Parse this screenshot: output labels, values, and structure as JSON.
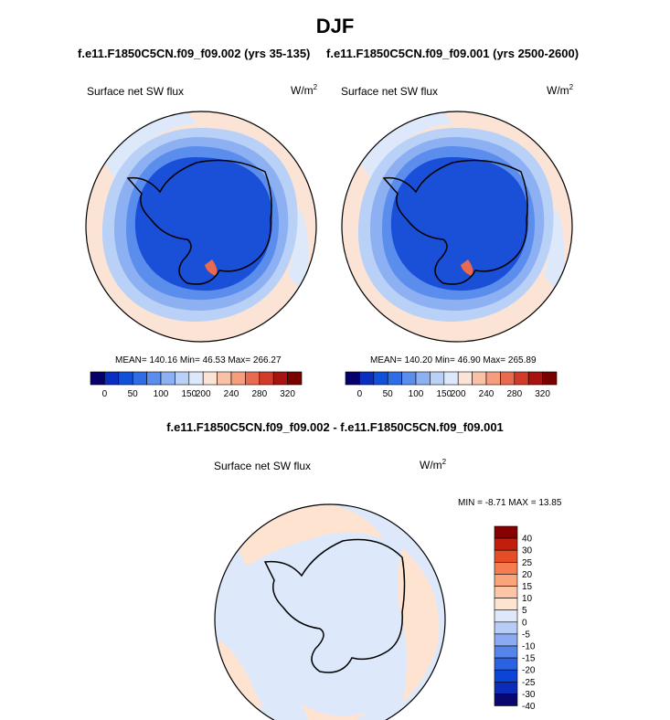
{
  "page": {
    "title": "DJF",
    "left_case": "f.e11.F1850C5CN.f09_f09.002 (yrs 35-135)",
    "right_case": "f.e11.F1850C5CN.f09_f09.001 (yrs 2500-2600)",
    "diff_title": "f.e11.F1850C5CN.f09_f09.002 - f.e11.F1850C5CN.f09_f09.001"
  },
  "colors": {
    "abs_levels": [
      "#08006a",
      "#0a2fc0",
      "#1150d8",
      "#2e6de6",
      "#5b8ded",
      "#8cb0f2",
      "#b9d0f7",
      "#dde9fb",
      "#fbe4d6",
      "#f9c2a6",
      "#f59d7d",
      "#ea6a4f",
      "#d23a2a",
      "#a8120f",
      "#7a0000"
    ],
    "diff_levels": [
      "#0a0870",
      "#0b2cb8",
      "#0c45d6",
      "#2a62e2",
      "#5685ea",
      "#8aaaf1",
      "#b7cdf6",
      "#dde9fb",
      "#fde3d0",
      "#fcc5a6",
      "#f9a47a",
      "#f47c4e",
      "#e44d25",
      "#bf1f0c",
      "#860000"
    ],
    "land_level": "#1a4fd8",
    "coastline": "#000000"
  },
  "chart_data": [
    {
      "type": "heatmap",
      "map": "polar stereographic, south pole",
      "title": "f.e11.F1850C5CN.f09_f09.002 (yrs 35-135)",
      "variable": "Surface net SW flux",
      "units": "W/m",
      "units_sup": "2",
      "stats_text": "MEAN= 140.16  Min=  46.53  Max= 266.27",
      "mean": 140.16,
      "min": 46.53,
      "max": 266.27,
      "colorbar_ticks": [
        "0",
        "50",
        "100",
        "150",
        "200",
        "240",
        "280",
        "320"
      ],
      "colorbar_orientation": "horizontal"
    },
    {
      "type": "heatmap",
      "map": "polar stereographic, south pole",
      "title": "f.e11.F1850C5CN.f09_f09.001 (yrs 2500-2600)",
      "variable": "Surface net SW flux",
      "units": "W/m",
      "units_sup": "2",
      "stats_text": "MEAN= 140.20  Min=  46.90  Max= 265.89",
      "mean": 140.2,
      "min": 46.9,
      "max": 265.89,
      "colorbar_ticks": [
        "0",
        "50",
        "100",
        "150",
        "200",
        "240",
        "280",
        "320"
      ],
      "colorbar_orientation": "horizontal"
    },
    {
      "type": "heatmap",
      "map": "polar stereographic, south pole",
      "title": "f.e11.F1850C5CN.f09_f09.002 - f.e11.F1850C5CN.f09_f09.001",
      "variable": "Surface net SW flux",
      "units": "W/m",
      "units_sup": "2",
      "stats_text": "MIN =  -8.71 MAX =  13.85",
      "min": -8.71,
      "max": 13.85,
      "colorbar_ticks": [
        "40",
        "30",
        "25",
        "20",
        "15",
        "10",
        "5",
        "0",
        "-5",
        "-10",
        "-15",
        "-20",
        "-25",
        "-30",
        "-40"
      ],
      "colorbar_orientation": "vertical"
    }
  ]
}
